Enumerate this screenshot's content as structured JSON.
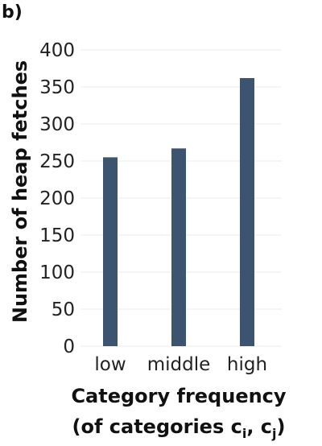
{
  "panel_label": "b)",
  "chart_data": {
    "type": "bar",
    "categories": [
      "low",
      "middle",
      "high"
    ],
    "values": [
      255,
      267,
      362
    ],
    "ylabel": "Number of heap fetches",
    "xlabel": "Category frequency",
    "xlabel_line2": {
      "prefix": "(of categories c",
      "sub1": "i",
      "middle": ", c",
      "sub2": "j",
      "suffix": ")"
    },
    "ylim": [
      0,
      400
    ],
    "yticks": [
      0,
      50,
      100,
      150,
      200,
      250,
      300,
      350,
      400
    ],
    "bar_color": "#3d5470",
    "grid": true,
    "legend": "none"
  }
}
